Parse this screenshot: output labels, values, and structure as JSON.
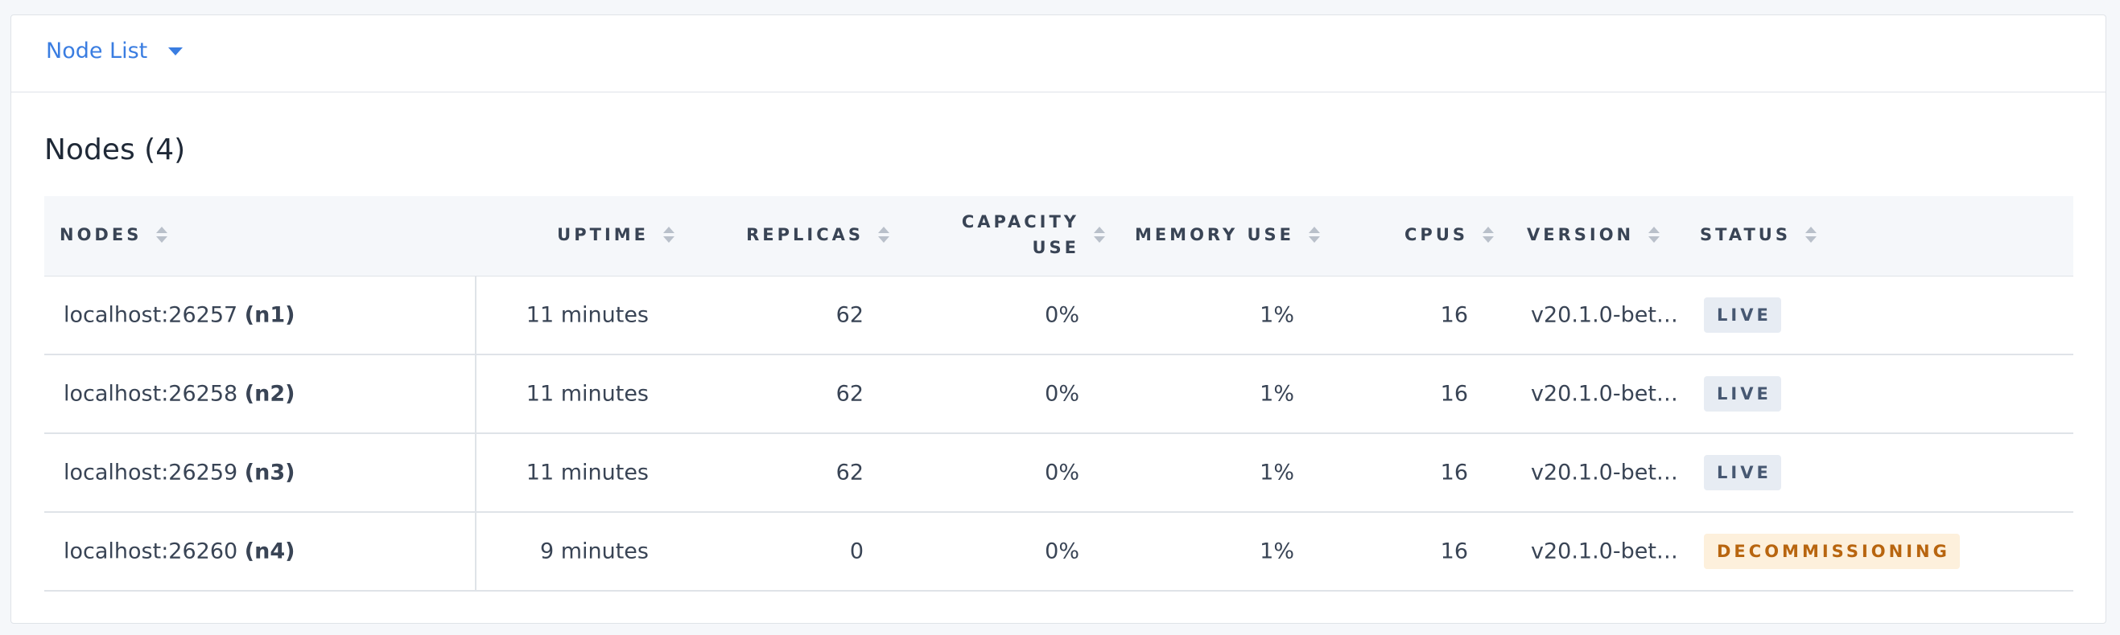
{
  "header": {
    "title": "Node List"
  },
  "section": {
    "title": "Nodes (4)"
  },
  "table": {
    "columns": [
      "NODES",
      "UPTIME",
      "REPLICAS",
      "CAPACITY USE",
      "MEMORY USE",
      "CPUS",
      "VERSION",
      "STATUS"
    ],
    "rows": [
      {
        "address": "localhost:26257",
        "id": "(n1)",
        "uptime": "11 minutes",
        "replicas": 62,
        "capacity": "0%",
        "memory": "1%",
        "cpus": 16,
        "version": "v20.1.0-bet…",
        "status": "LIVE"
      },
      {
        "address": "localhost:26258",
        "id": "(n2)",
        "uptime": "11 minutes",
        "replicas": 62,
        "capacity": "0%",
        "memory": "1%",
        "cpus": 16,
        "version": "v20.1.0-bet…",
        "status": "LIVE"
      },
      {
        "address": "localhost:26259",
        "id": "(n3)",
        "uptime": "11 minutes",
        "replicas": 62,
        "capacity": "0%",
        "memory": "1%",
        "cpus": 16,
        "version": "v20.1.0-bet…",
        "status": "LIVE"
      },
      {
        "address": "localhost:26260",
        "id": "(n4)",
        "uptime": "9 minutes",
        "replicas": 0,
        "capacity": "0%",
        "memory": "1%",
        "cpus": 16,
        "version": "v20.1.0-bet…",
        "status": "DECOMMISSIONING"
      }
    ]
  }
}
